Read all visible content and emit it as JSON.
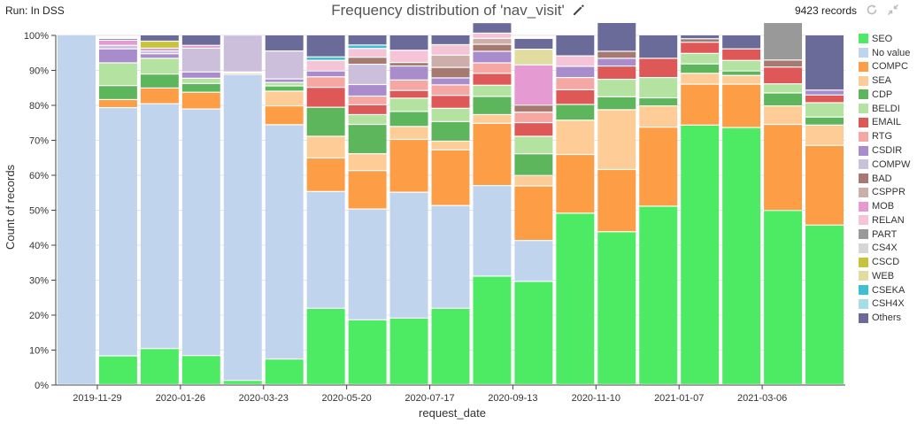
{
  "header": {
    "run_label": "Run: In DSS",
    "title": "Frequency distribution of 'nav_visit'",
    "records": "9423 records"
  },
  "icons": {
    "edit": "pencil-icon",
    "refresh": "refresh-icon",
    "collapse": "collapse-icon"
  },
  "chart_data": {
    "type": "bar",
    "stacked": true,
    "normalized": true,
    "title": "Frequency distribution of 'nav_visit'",
    "xlabel": "request_date",
    "ylabel": "Count of records",
    "ylim": [
      0,
      100
    ],
    "yticks": [
      "0%",
      "10%",
      "20%",
      "30%",
      "40%",
      "50%",
      "60%",
      "70%",
      "80%",
      "90%",
      "100%"
    ],
    "xtick_labels": [
      "2019-11-29",
      "2020-01-26",
      "2020-03-23",
      "2020-05-20",
      "2020-07-17",
      "2020-09-13",
      "2020-11-10",
      "2021-01-07",
      "2021-03-06"
    ],
    "grid": true,
    "legend_position": "right",
    "series": [
      {
        "name": "SEO",
        "color": "#4deb63",
        "values": [
          0,
          8.2,
          10.3,
          8.3,
          1.2,
          7.3,
          21.8,
          18.5,
          19.0,
          21.8,
          31.0,
          29.5,
          49.0,
          43.7,
          51.0,
          74.2,
          73.5,
          49.8,
          45.6
        ]
      },
      {
        "name": "No value",
        "color": "#c0d4ee",
        "values": [
          100,
          71.0,
          70.0,
          70.5,
          87.5,
          67.0,
          33.4,
          31.7,
          36.0,
          29.4,
          25.9,
          11.7,
          0,
          0,
          0,
          0,
          0,
          0,
          0
        ]
      },
      {
        "name": "COMPC",
        "color": "#fd9d45",
        "values": [
          0,
          2.3,
          4.5,
          4.8,
          0.4,
          5.4,
          9.6,
          11.0,
          15.1,
          15.9,
          17.8,
          15.6,
          16.8,
          17.8,
          22.6,
          11.7,
          12.4,
          24.6,
          22.8
        ]
      },
      {
        "name": "SEA",
        "color": "#fecd97",
        "values": [
          0,
          0,
          0,
          0,
          0,
          4.2,
          6.2,
          4.8,
          3.7,
          2.5,
          2.5,
          3.0,
          9.8,
          17.1,
          6.1,
          3.1,
          2.5,
          5.3,
          5.8
        ]
      },
      {
        "name": "CDP",
        "color": "#5eb65c",
        "values": [
          0,
          4.0,
          4.0,
          2.5,
          0,
          1.5,
          8.3,
          8.4,
          4.3,
          5.6,
          5.2,
          6.2,
          4.5,
          3.7,
          2.3,
          2.7,
          1.3,
          3.7,
          2.3
        ]
      },
      {
        "name": "BELDI",
        "color": "#b3e2a1",
        "values": [
          0,
          6.5,
          4.5,
          1.5,
          0,
          1.0,
          0,
          2.8,
          3.8,
          3.8,
          3.2,
          5.0,
          0,
          5.0,
          5.8,
          3.0,
          3.0,
          2.6,
          4.1
        ]
      },
      {
        "name": "EMAIL",
        "color": "#de5858",
        "values": [
          0,
          0,
          0,
          0,
          0,
          0,
          5.7,
          2.8,
          2.2,
          3.7,
          3.4,
          3.9,
          4.2,
          3.8,
          5.5,
          3.2,
          3.3,
          4.8,
          2.2
        ]
      },
      {
        "name": "RTG",
        "color": "#f5a8a3",
        "values": [
          0,
          0,
          0,
          0,
          0,
          0,
          3.0,
          2.5,
          3.0,
          3.0,
          3.0,
          3.0,
          3.5,
          0,
          0,
          0,
          0,
          0,
          0
        ]
      },
      {
        "name": "CSDIR",
        "color": "#a98ccb",
        "values": [
          0,
          4.0,
          1.3,
          1.8,
          0.3,
          1.0,
          1.7,
          3.3,
          4.0,
          2.0,
          3.3,
          0,
          3.2,
          2.2,
          0,
          0,
          0,
          0,
          1.4
        ]
      },
      {
        "name": "COMPW",
        "color": "#ccbfdc",
        "values": [
          0,
          1.0,
          0.8,
          6.8,
          10.5,
          8.0,
          0,
          5.8,
          0,
          0,
          0,
          0,
          0,
          0,
          0,
          0,
          0,
          0,
          0
        ]
      },
      {
        "name": "BAD",
        "color": "#a67a70",
        "values": [
          0,
          0,
          0,
          0,
          0,
          0,
          0,
          2.0,
          1.0,
          3.0,
          2.0,
          2.0,
          0,
          2.0,
          0,
          1.0,
          0,
          2.0,
          0
        ]
      },
      {
        "name": "CSPPR",
        "color": "#ccafa9",
        "values": [
          0,
          0,
          0,
          0,
          0,
          0,
          0,
          0,
          0,
          3.5,
          1.7,
          0,
          0,
          0,
          0,
          0,
          0,
          0,
          0
        ]
      },
      {
        "name": "MOB",
        "color": "#e59ad2",
        "values": [
          0,
          1.5,
          0.8,
          0.8,
          0,
          0,
          0,
          0,
          0,
          0,
          0,
          11.5,
          0,
          0,
          0,
          0,
          0,
          0,
          0
        ]
      },
      {
        "name": "RELAN",
        "color": "#f6c4d7",
        "values": [
          0,
          0,
          0,
          0,
          0,
          0,
          3.0,
          2.5,
          3.5,
          3.0,
          1.5,
          0,
          3.0,
          0,
          0,
          0,
          0,
          0,
          0
        ]
      },
      {
        "name": "PART",
        "color": "#999999",
        "values": [
          0,
          0,
          0,
          0,
          0,
          0,
          0,
          0,
          0,
          0,
          0,
          0,
          0,
          0,
          0,
          0,
          0,
          10.8,
          0
        ]
      },
      {
        "name": "CS4X",
        "color": "#d6d6d6",
        "values": [
          0,
          0,
          0,
          0,
          0,
          0,
          0,
          0,
          0,
          0,
          0,
          0,
          0,
          0,
          0,
          0,
          0,
          0,
          0
        ]
      },
      {
        "name": "CSCD",
        "color": "#c7c43b",
        "values": [
          0,
          0,
          2.0,
          0,
          0,
          0,
          0,
          0,
          0,
          0,
          0,
          0,
          0,
          0,
          0,
          0,
          0,
          0,
          0
        ]
      },
      {
        "name": "WEB",
        "color": "#e1dc9f",
        "values": [
          0,
          0,
          0,
          0,
          0,
          0,
          0,
          0,
          0,
          0,
          0,
          4.5,
          0,
          0,
          0,
          0,
          0,
          0,
          0
        ]
      },
      {
        "name": "CSEKA",
        "color": "#40bfd4",
        "values": [
          0,
          0,
          0,
          0,
          0,
          0,
          1.0,
          1.0,
          0,
          0,
          0,
          0,
          0,
          0,
          0,
          0,
          0,
          0,
          0
        ]
      },
      {
        "name": "CSH4X",
        "color": "#a6dde8",
        "values": [
          0,
          0,
          0,
          0,
          0,
          0,
          0,
          0,
          0,
          0,
          0,
          0,
          0,
          0,
          0,
          0,
          0,
          0,
          0
        ]
      },
      {
        "name": "Others",
        "color": "#6b6b99",
        "values": [
          0,
          0.5,
          1.8,
          3.0,
          0.1,
          4.6,
          6.3,
          2.9,
          4.4,
          2.8,
          3.0,
          3.1,
          6.0,
          8.7,
          6.7,
          1.1,
          4.0,
          6.4,
          15.8
        ]
      }
    ]
  }
}
